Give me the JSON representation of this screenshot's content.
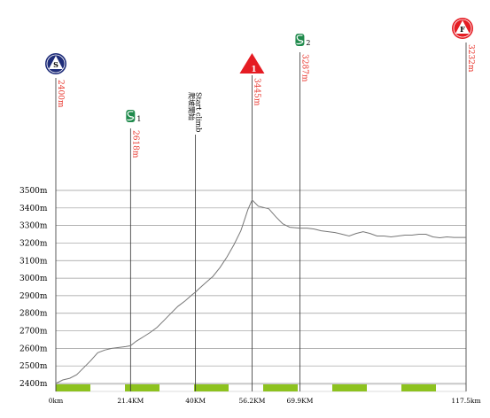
{
  "chart_data": {
    "type": "line",
    "x_unit": "km",
    "y_unit": "m",
    "xlim": [
      0,
      117.5
    ],
    "ylim": [
      2400,
      3500
    ],
    "yticks": [
      {
        "value": 2400,
        "label": "2400m"
      },
      {
        "value": 2500,
        "label": "2500m"
      },
      {
        "value": 2600,
        "label": "2600m"
      },
      {
        "value": 2700,
        "label": "2700m"
      },
      {
        "value": 2800,
        "label": "2800m"
      },
      {
        "value": 2900,
        "label": "2900m"
      },
      {
        "value": 3000,
        "label": "3000m"
      },
      {
        "value": 3100,
        "label": "3100m"
      },
      {
        "value": 3200,
        "label": "3200m"
      },
      {
        "value": 3300,
        "label": "3300m"
      },
      {
        "value": 3400,
        "label": "3400m"
      },
      {
        "value": 3500,
        "label": "3500m"
      }
    ],
    "xticks": [
      {
        "value": 0,
        "label": "0km"
      },
      {
        "value": 21.4,
        "label": "21.4KM"
      },
      {
        "value": 40,
        "label": "40KM"
      },
      {
        "value": 56.2,
        "label": "56.2KM"
      },
      {
        "value": 69.9,
        "label": "69.9KM"
      },
      {
        "value": 117.5,
        "label": "117.5km"
      }
    ],
    "profile": {
      "x": [
        0,
        2,
        4,
        6,
        8,
        10,
        12,
        14,
        16,
        18,
        20,
        21.4,
        23,
        25,
        27,
        29,
        31,
        33,
        35,
        37,
        39,
        40,
        41,
        43,
        45,
        47,
        49,
        51,
        53,
        54,
        55,
        56.2,
        57,
        58,
        59,
        61,
        63,
        65,
        67,
        69.9,
        72,
        74,
        76,
        78,
        80,
        82,
        84,
        86,
        88,
        90,
        92,
        94,
        96,
        98,
        100,
        102,
        104,
        106,
        108,
        110,
        112,
        114,
        116,
        117.5
      ],
      "y": [
        2400,
        2420,
        2430,
        2450,
        2490,
        2530,
        2575,
        2590,
        2600,
        2605,
        2610,
        2615,
        2640,
        2665,
        2690,
        2720,
        2760,
        2800,
        2840,
        2870,
        2905,
        2920,
        2940,
        2975,
        3010,
        3060,
        3120,
        3190,
        3270,
        3330,
        3390,
        3445,
        3430,
        3410,
        3405,
        3395,
        3350,
        3310,
        3290,
        3285,
        3285,
        3280,
        3270,
        3265,
        3260,
        3250,
        3240,
        3255,
        3265,
        3255,
        3240,
        3240,
        3235,
        3240,
        3245,
        3245,
        3250,
        3250,
        3235,
        3230,
        3235,
        3232,
        3232,
        3232
      ]
    },
    "markers": [
      {
        "kind": "start",
        "x": 0,
        "symbol": "S",
        "label": "2400m"
      },
      {
        "kind": "sprint",
        "x": 21.4,
        "symbol": "S",
        "index": "1",
        "label": "2618m"
      },
      {
        "kind": "climb-start",
        "x": 40,
        "label": "Start climb",
        "sub": "爬坡開始"
      },
      {
        "kind": "kom",
        "x": 56.2,
        "symbol": "1",
        "label": "3445m"
      },
      {
        "kind": "sprint",
        "x": 69.9,
        "symbol": "S",
        "index": "2",
        "label": "3287m"
      },
      {
        "kind": "finish",
        "x": 117.5,
        "symbol": "F",
        "label": "3232m"
      }
    ],
    "colors": {
      "profile": "#777777",
      "grid": "#999999",
      "value_label": "#e8332a",
      "start_circle": "#1f2d7a",
      "kom_triangle": "#e51c23",
      "finish_circle": "#e51c23",
      "sprint_icon": "#1f8a4c",
      "bar_green": "#8dc21f"
    }
  }
}
